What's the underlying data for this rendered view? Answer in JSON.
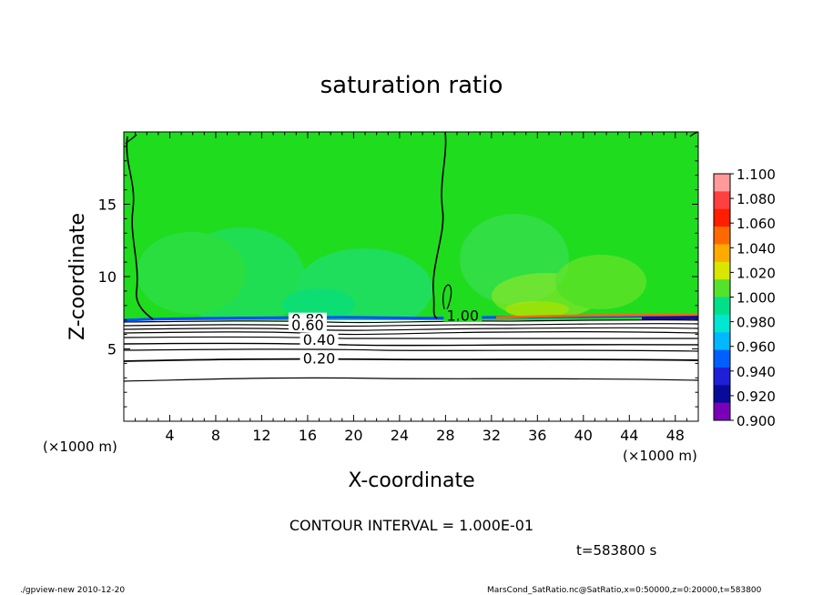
{
  "chart_data": {
    "type": "heatmap",
    "title": "saturation ratio",
    "xlabel": "X-coordinate",
    "ylabel": "Z-coordinate",
    "x_unit_label": "(×1000 m)",
    "y_unit_label": "(×1000 m)",
    "xlim": [
      0,
      50
    ],
    "ylim": [
      0,
      20
    ],
    "x_ticks": [
      4,
      8,
      12,
      16,
      20,
      24,
      28,
      32,
      36,
      40,
      44,
      48
    ],
    "y_ticks": [
      5,
      10,
      15
    ],
    "colorbar": {
      "levels": [
        "1.100",
        "1.080",
        "1.060",
        "1.040",
        "1.020",
        "1.000",
        "0.980",
        "0.960",
        "0.940",
        "0.920",
        "0.900"
      ],
      "colors": [
        "#ff9a9a",
        "#ff4040",
        "#ff1e00",
        "#ff6a00",
        "#ffaa00",
        "#d8e600",
        "#55e22c",
        "#00e08a",
        "#00e6d0",
        "#00b8ff",
        "#0060ff",
        "#1f1fd6",
        "#0a0a9a",
        "#7a00b8"
      ]
    },
    "contour_labels": [
      {
        "text": "1.00",
        "x": 29.5,
        "z": 7.25
      },
      {
        "text": "0.80",
        "x": 16.0,
        "z": 7.0
      },
      {
        "text": "0.60",
        "x": 16.0,
        "z": 6.6
      },
      {
        "text": "0.40",
        "x": 17.0,
        "z": 5.6
      },
      {
        "text": "0.20",
        "x": 17.0,
        "z": 4.3
      }
    ],
    "saturated_layer_top_z": 7.0,
    "contour_interval_text": "CONTOUR INTERVAL = 1.000E-01",
    "time_text": "t=583800 s"
  },
  "footer": {
    "left": "./gpview-new  2010-12-20",
    "right": "MarsCond_SatRatio.nc@SatRatio,x=0:50000,z=0:20000,t=583800"
  }
}
